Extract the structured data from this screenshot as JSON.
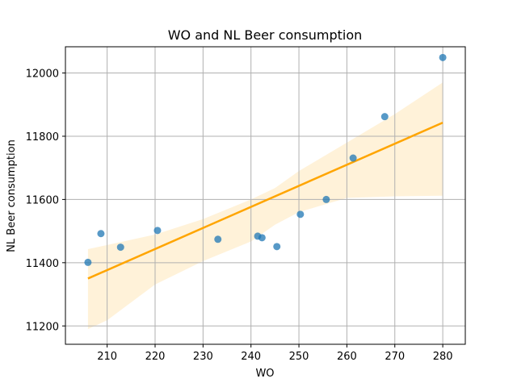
{
  "chart_data": {
    "type": "scatter",
    "title": "WO and NL Beer consumption",
    "xlabel": "WO",
    "ylabel": "NL Beer consumption",
    "xlim": [
      201.3,
      284.7
    ],
    "ylim": [
      11142,
      12083
    ],
    "xticks": [
      210,
      220,
      230,
      240,
      250,
      260,
      270,
      280
    ],
    "yticks": [
      11200,
      11400,
      11600,
      11800,
      12000
    ],
    "grid": true,
    "points": [
      {
        "x": 206.0,
        "y": 11401
      },
      {
        "x": 208.7,
        "y": 11492
      },
      {
        "x": 212.8,
        "y": 11449
      },
      {
        "x": 220.5,
        "y": 11502
      },
      {
        "x": 233.1,
        "y": 11474
      },
      {
        "x": 241.4,
        "y": 11484
      },
      {
        "x": 242.3,
        "y": 11479
      },
      {
        "x": 245.4,
        "y": 11451
      },
      {
        "x": 250.3,
        "y": 11553
      },
      {
        "x": 255.7,
        "y": 11600
      },
      {
        "x": 261.3,
        "y": 11731
      },
      {
        "x": 267.9,
        "y": 11862
      },
      {
        "x": 280.0,
        "y": 12049
      }
    ],
    "regression": {
      "x": [
        206.0,
        280.0
      ],
      "y": [
        11350,
        11843
      ]
    },
    "confidence_band": {
      "x": [
        206.0,
        210.0,
        220.0,
        230.0,
        240.0,
        245.0,
        250.0,
        260.0,
        270.0,
        280.0
      ],
      "upper": [
        11443,
        11456,
        11489,
        11538,
        11600,
        11636,
        11690,
        11780,
        11870,
        11970
      ],
      "lower": [
        11190,
        11218,
        11331,
        11405,
        11467,
        11520,
        11560,
        11605,
        11610,
        11612
      ]
    },
    "colors": {
      "points": "#1f77b4",
      "line": "#ffa500",
      "band": "#ffa500",
      "grid": "#b0b0b0"
    }
  }
}
